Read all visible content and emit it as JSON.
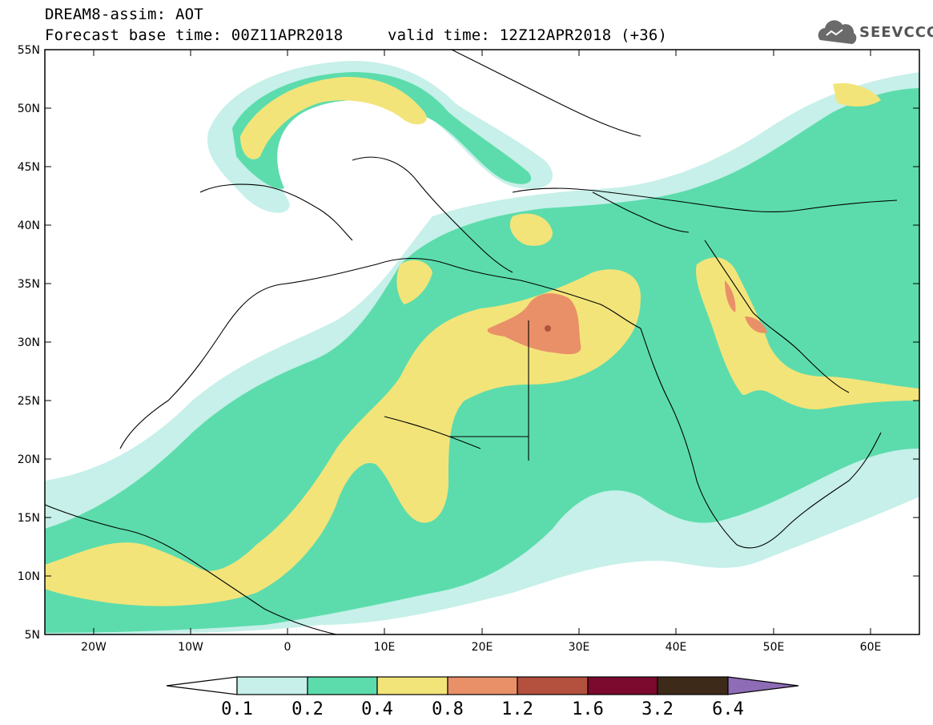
{
  "header": {
    "line1": "DREAM8-assim: AOT",
    "line2_left": "Forecast base time: 00Z11APR2018",
    "line2_right": "valid time: 12Z12APR2018 (+36)"
  },
  "logo": {
    "text": "SEEVCCC",
    "icon": "cloud-icon"
  },
  "map": {
    "lat_labels": [
      "55N",
      "50N",
      "45N",
      "40N",
      "35N",
      "30N",
      "25N",
      "20N",
      "15N",
      "10N",
      "5N"
    ],
    "lon_labels": [
      "20W",
      "10W",
      "0",
      "10E",
      "20E",
      "30E",
      "40E",
      "50E",
      "60E"
    ]
  },
  "colorbar": {
    "labels": [
      "0.1",
      "0.2",
      "0.4",
      "0.8",
      "1.2",
      "1.6",
      "3.2",
      "6.4"
    ],
    "colors": {
      "c0": "#c6f0e9",
      "c1": "#5cdcac",
      "c2": "#f3e47a",
      "c3": "#e99068",
      "c4": "#b4503e",
      "c5": "#7c0a2e",
      "c6": "#3e2a18",
      "c7": "#8e6cb6"
    }
  }
}
